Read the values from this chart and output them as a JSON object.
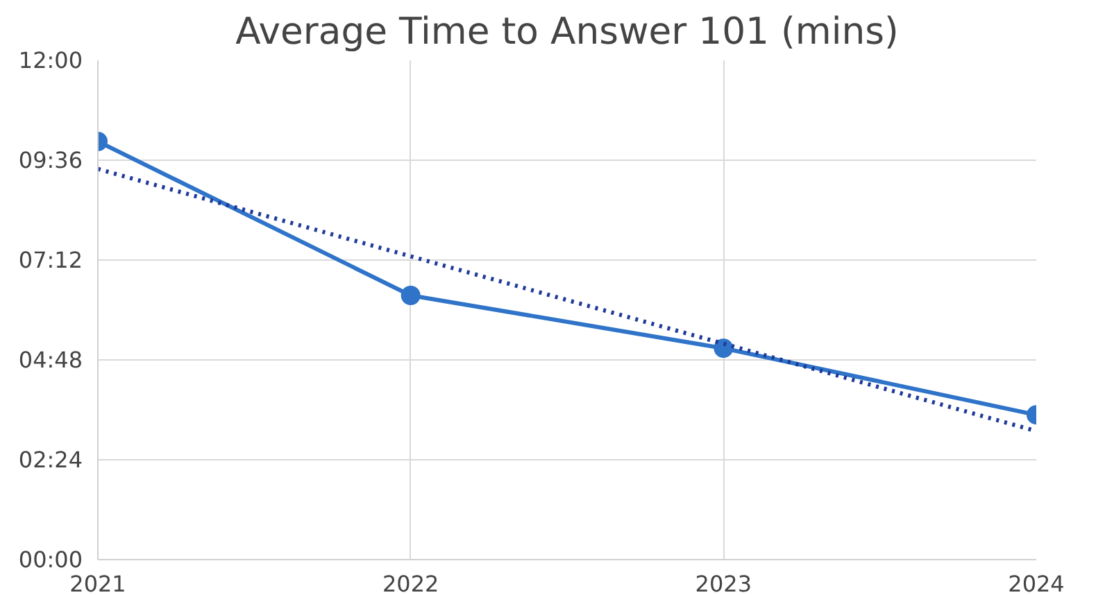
{
  "chart_data": {
    "type": "line",
    "title": "Average Time to Answer 101 (mins)",
    "x": [
      2021,
      2022,
      2023,
      2024
    ],
    "xlim": [
      2021,
      2024
    ],
    "xticks": [
      2021,
      2022,
      2023,
      2024
    ],
    "ylim": [
      0,
      12
    ],
    "yticks": [
      {
        "value": 0,
        "label": "00:00"
      },
      {
        "value": 2.4,
        "label": "02:24"
      },
      {
        "value": 4.8,
        "label": "04:48"
      },
      {
        "value": 7.2,
        "label": "07:12"
      },
      {
        "value": 9.6,
        "label": "09:36"
      },
      {
        "value": 12,
        "label": "12:00"
      }
    ],
    "grid": true,
    "series": [
      {
        "color": "#2f74c8",
        "values": [
          10.05,
          6.35,
          5.08,
          3.48
        ],
        "marker": "circle",
        "line_style": "solid"
      },
      {
        "type": "line",
        "color": "#1f3a9a",
        "x": [
          2021,
          2024
        ],
        "values": [
          9.39,
          3.09
        ],
        "marker": "none",
        "line_style": "dotted"
      }
    ]
  }
}
